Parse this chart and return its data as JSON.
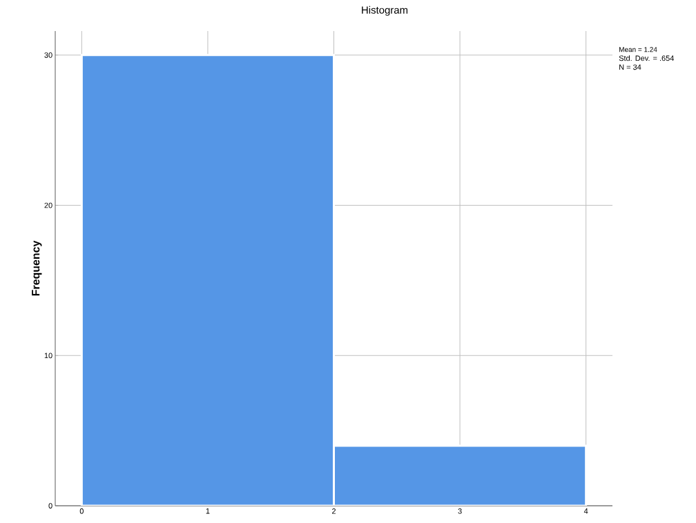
{
  "chart_data": {
    "type": "histogram",
    "title": "Histogram",
    "ylabel": "Frequency",
    "bins": [
      0,
      2,
      4
    ],
    "values": [
      30,
      4
    ],
    "color": "#5596e6",
    "xlim": [
      -0.21,
      4.21
    ],
    "xticks": [
      0,
      1,
      2,
      3,
      4
    ],
    "ylim": [
      0,
      31.6
    ],
    "yticks": [
      0,
      10,
      20,
      30
    ],
    "grid": true,
    "annotations": [
      "Mean = 1.24",
      "Std. Dev. = .654",
      "N = 34"
    ]
  }
}
